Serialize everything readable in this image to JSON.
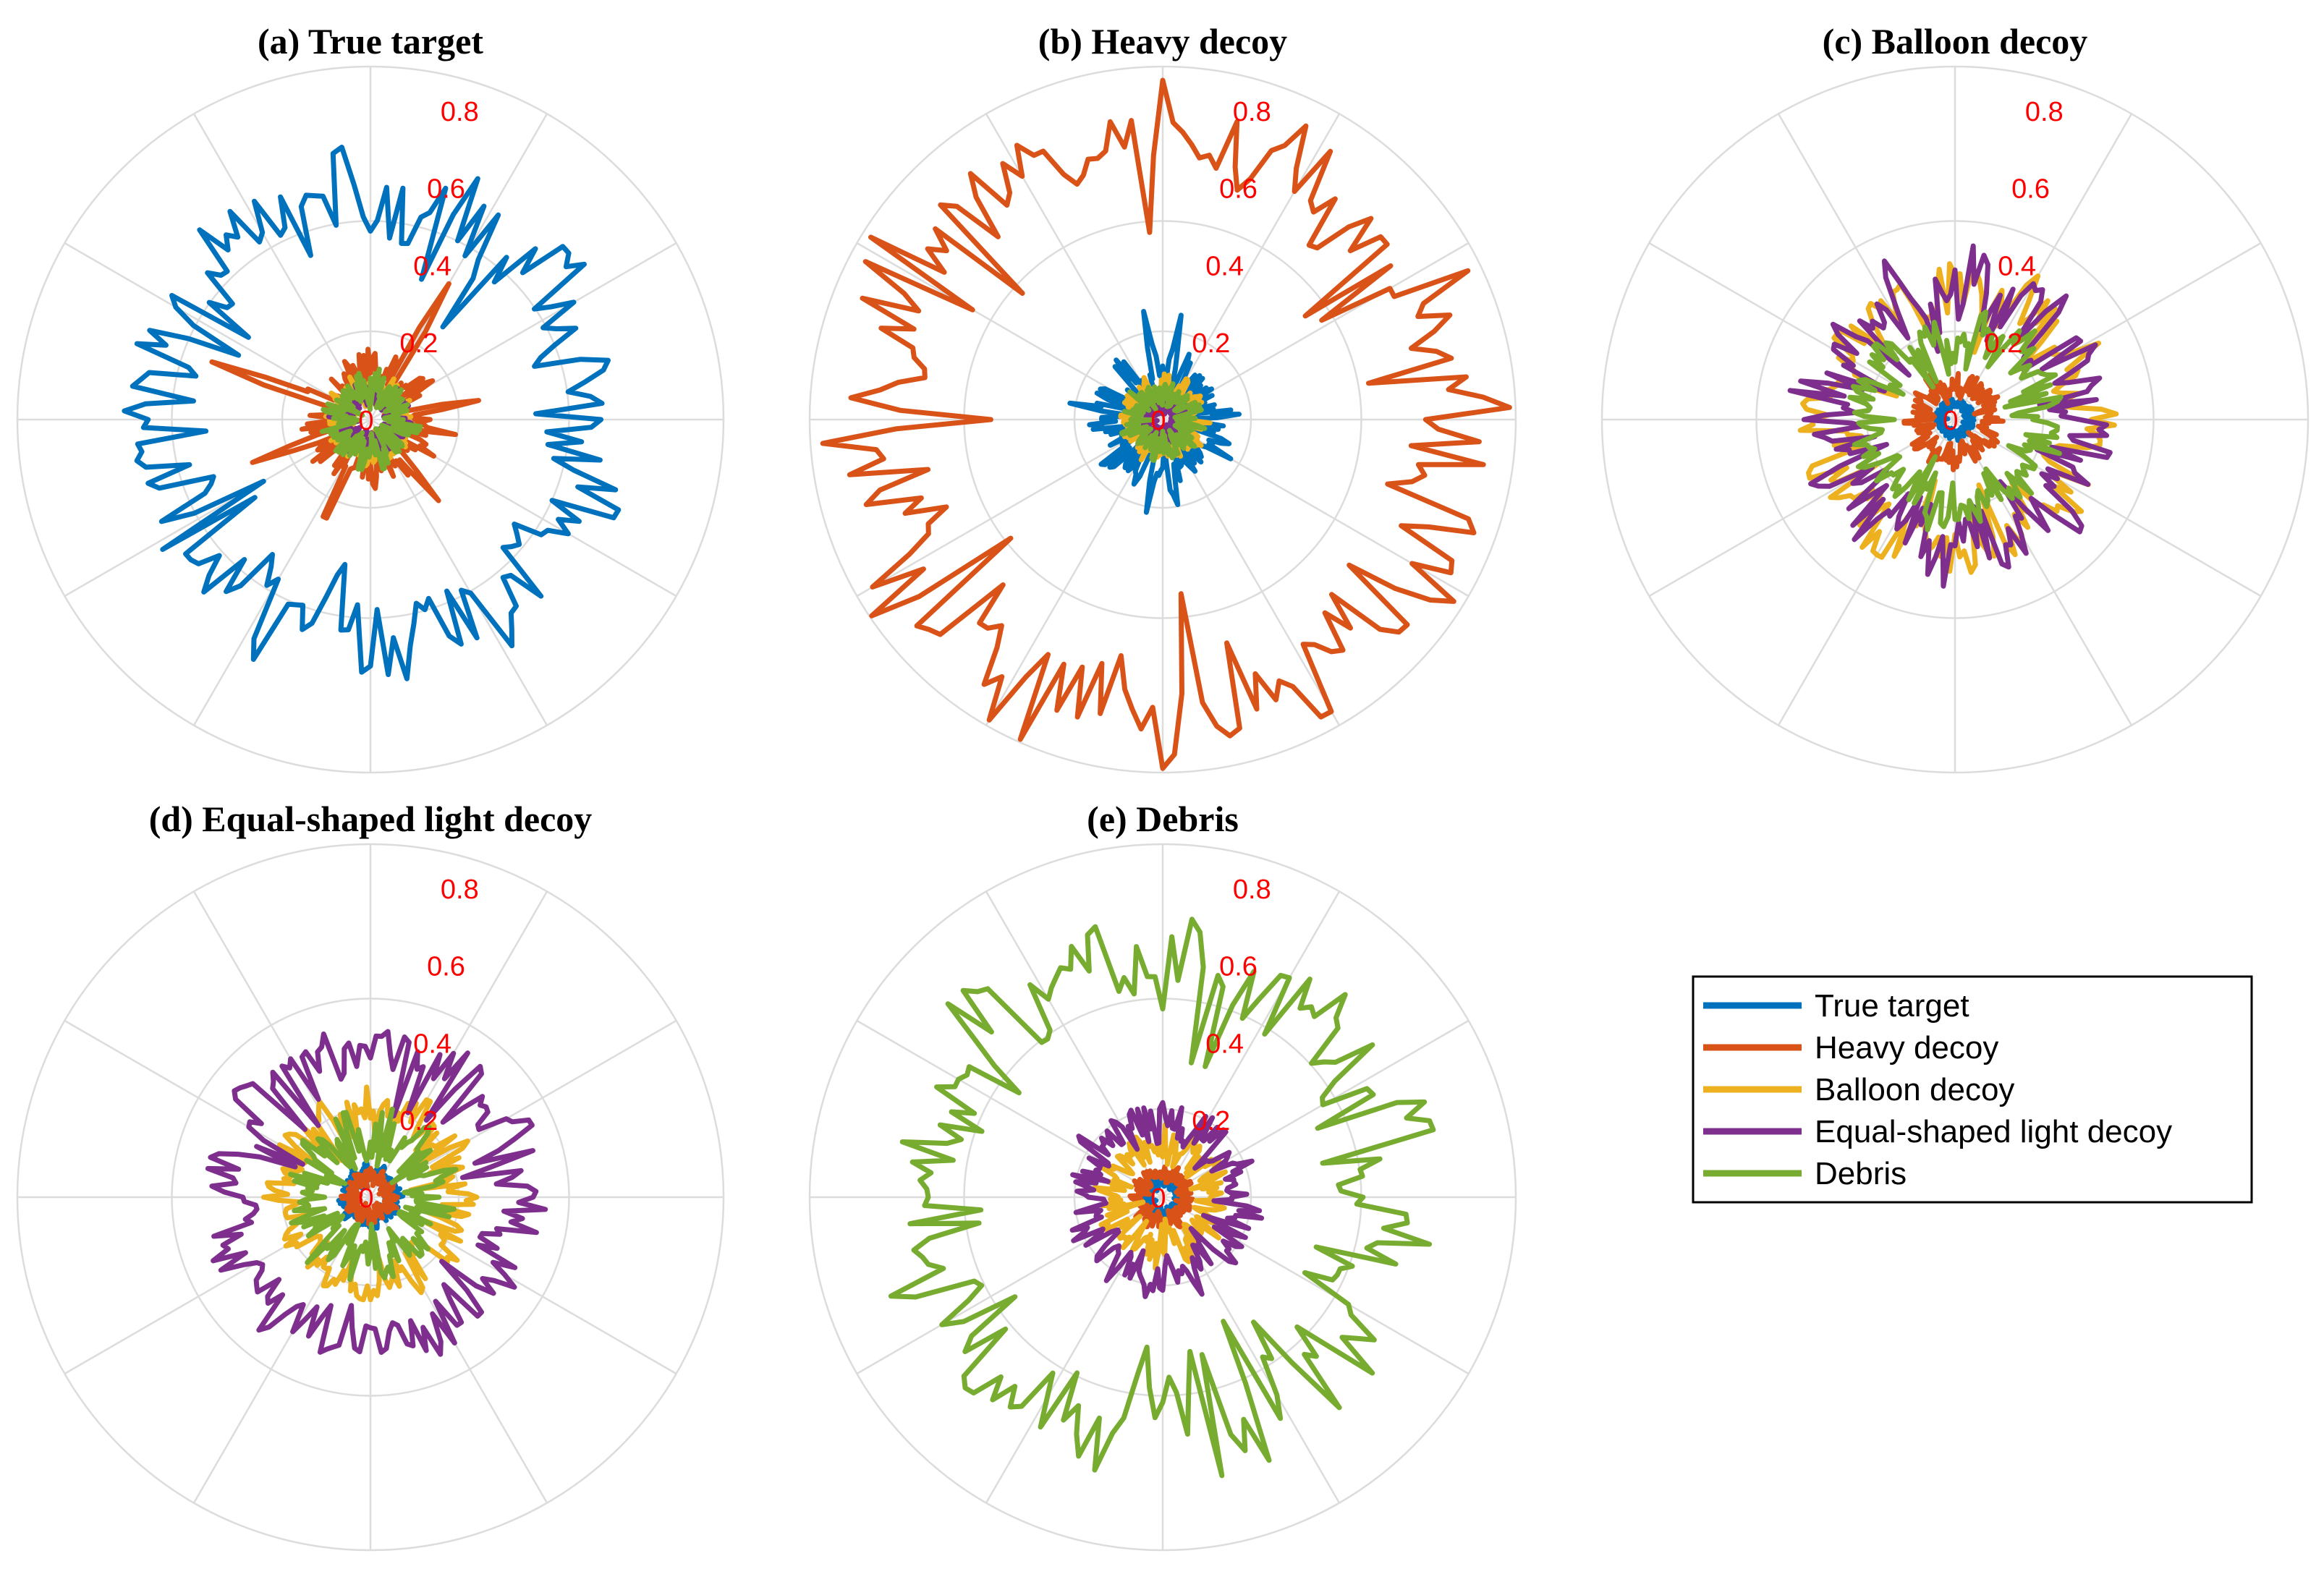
{
  "chart_data": [
    {
      "type": "polar-line",
      "title": "(a) True target",
      "rlim": [
        0,
        0.9
      ],
      "rticks": [
        "0",
        "0.2",
        "0.4",
        "0.6",
        "0.8"
      ],
      "grid": true,
      "angular_grid_step_deg": 30,
      "n_angles": 180,
      "series": [
        {
          "name": "True target",
          "color": "#0072BD",
          "mean": 0.56,
          "jitter": 0.1,
          "spikes": []
        },
        {
          "name": "Heavy decoy",
          "color": "#D95319",
          "mean": 0.12,
          "jitter": 0.05,
          "spikes": [
            [
              160,
              0.43
            ],
            [
              60,
              0.4
            ],
            [
              245,
              0.33
            ],
            [
              200,
              0.32
            ],
            [
              10,
              0.28
            ],
            [
              310,
              0.27
            ],
            [
              350,
              0.22
            ]
          ]
        },
        {
          "name": "Balloon decoy",
          "color": "#EDB120",
          "mean": 0.08,
          "jitter": 0.03,
          "spikes": []
        },
        {
          "name": "Equal-shaped light decoy",
          "color": "#7E2F8E",
          "mean": 0.07,
          "jitter": 0.03,
          "spikes": []
        },
        {
          "name": "Debris",
          "color": "#77AC30",
          "mean": 0.08,
          "jitter": 0.04,
          "spikes": []
        }
      ]
    },
    {
      "type": "polar-line",
      "title": "(b) Heavy decoy",
      "rlim": [
        0,
        0.9
      ],
      "rticks": [
        "0",
        "0.2",
        "0.4",
        "0.6",
        "0.8"
      ],
      "grid": true,
      "angular_grid_step_deg": 30,
      "n_angles": 180,
      "series": [
        {
          "name": "True target",
          "color": "#0072BD",
          "mean": 0.12,
          "jitter": 0.06,
          "spikes": [
            [
              100,
              0.28
            ],
            [
              80,
              0.27
            ],
            [
              170,
              0.24
            ],
            [
              280,
              0.22
            ],
            [
              330,
              0.2
            ],
            [
              260,
              0.24
            ]
          ]
        },
        {
          "name": "Heavy decoy",
          "color": "#D95319",
          "mean": 0.74,
          "jitter": 0.12,
          "spikes": []
        },
        {
          "name": "Balloon decoy",
          "color": "#EDB120",
          "mean": 0.08,
          "jitter": 0.03,
          "spikes": []
        },
        {
          "name": "Equal-shaped light decoy",
          "color": "#7E2F8E",
          "mean": 0.04,
          "jitter": 0.02,
          "spikes": []
        },
        {
          "name": "Debris",
          "color": "#77AC30",
          "mean": 0.07,
          "jitter": 0.03,
          "spikes": []
        }
      ]
    },
    {
      "type": "polar-line",
      "title": "(c) Balloon decoy",
      "rlim": [
        0,
        0.9
      ],
      "rticks": [
        "0",
        "0.2",
        "0.4",
        "0.6",
        "0.8"
      ],
      "grid": true,
      "angular_grid_step_deg": 30,
      "n_angles": 180,
      "series": [
        {
          "name": "True target",
          "color": "#0072BD",
          "mean": 0.04,
          "jitter": 0.01,
          "spikes": []
        },
        {
          "name": "Heavy decoy",
          "color": "#D95319",
          "mean": 0.09,
          "jitter": 0.03,
          "spikes": []
        },
        {
          "name": "Balloon decoy",
          "color": "#EDB120",
          "mean": 0.33,
          "jitter": 0.07,
          "spikes": []
        },
        {
          "name": "Equal-shaped light decoy",
          "color": "#7E2F8E",
          "mean": 0.32,
          "jitter": 0.09,
          "spikes": []
        },
        {
          "name": "Debris",
          "color": "#77AC30",
          "mean": 0.22,
          "jitter": 0.06,
          "spikes": []
        }
      ]
    },
    {
      "type": "polar-line",
      "title": "(d) Equal-shaped light decoy",
      "rlim": [
        0,
        0.9
      ],
      "rticks": [
        "0",
        "0.2",
        "0.4",
        "0.6",
        "0.8"
      ],
      "grid": true,
      "angular_grid_step_deg": 30,
      "n_angles": 180,
      "series": [
        {
          "name": "True target",
          "color": "#0072BD",
          "mean": 0.06,
          "jitter": 0.02,
          "spikes": []
        },
        {
          "name": "Heavy decoy",
          "color": "#D95319",
          "mean": 0.05,
          "jitter": 0.02,
          "spikes": []
        },
        {
          "name": "Balloon decoy",
          "color": "#EDB120",
          "mean": 0.22,
          "jitter": 0.05,
          "spikes": []
        },
        {
          "name": "Equal-shaped light decoy",
          "color": "#7E2F8E",
          "mean": 0.37,
          "jitter": 0.06,
          "spikes": []
        },
        {
          "name": "Debris",
          "color": "#77AC30",
          "mean": 0.15,
          "jitter": 0.06,
          "spikes": []
        }
      ]
    },
    {
      "type": "polar-line",
      "title": "(e) Debris",
      "rlim": [
        0,
        0.9
      ],
      "rticks": [
        "0",
        "0.2",
        "0.4",
        "0.6",
        "0.8"
      ],
      "grid": true,
      "angular_grid_step_deg": 30,
      "n_angles": 180,
      "series": [
        {
          "name": "True target",
          "color": "#0072BD",
          "mean": 0.04,
          "jitter": 0.01,
          "spikes": []
        },
        {
          "name": "Heavy decoy",
          "color": "#D95319",
          "mean": 0.06,
          "jitter": 0.02,
          "spikes": []
        },
        {
          "name": "Balloon decoy",
          "color": "#EDB120",
          "mean": 0.13,
          "jitter": 0.04,
          "spikes": []
        },
        {
          "name": "Equal-shaped light decoy",
          "color": "#7E2F8E",
          "mean": 0.2,
          "jitter": 0.05,
          "spikes": []
        },
        {
          "name": "Debris",
          "color": "#77AC30",
          "mean": 0.6,
          "jitter": 0.11,
          "spikes": []
        }
      ]
    }
  ],
  "legend": {
    "placement": "bottom-right",
    "entries": [
      {
        "label": "True target",
        "color": "#0072BD"
      },
      {
        "label": "Heavy decoy",
        "color": "#D95319"
      },
      {
        "label": "Balloon decoy",
        "color": "#EDB120"
      },
      {
        "label": "Equal-shaped light decoy",
        "color": "#7E2F8E"
      },
      {
        "label": "Debris",
        "color": "#77AC30"
      }
    ]
  }
}
